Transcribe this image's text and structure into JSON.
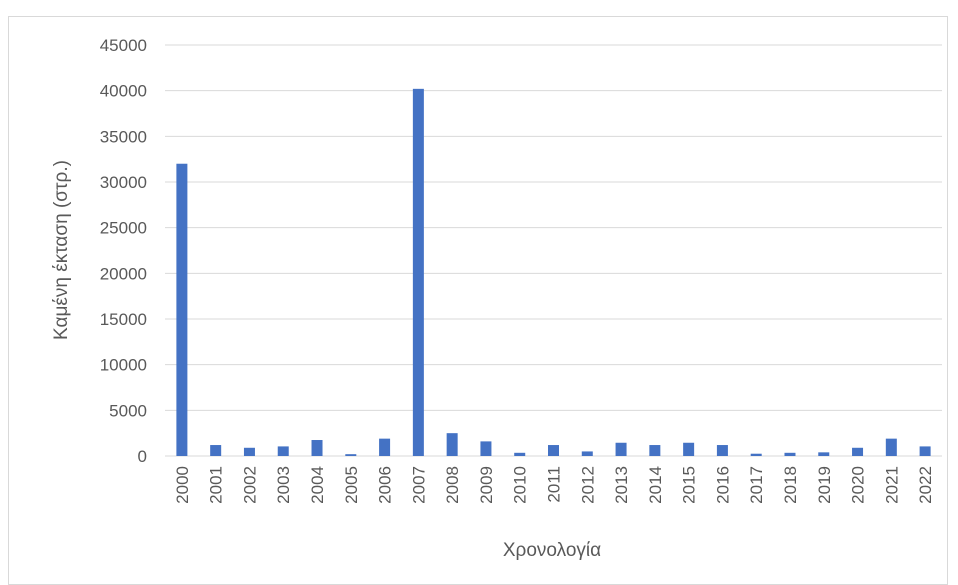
{
  "chart_data": {
    "type": "bar",
    "title": "",
    "xlabel": "Χρονολογία",
    "ylabel": "Καμένη έκταση (στρ.)",
    "ylim": [
      0,
      45000
    ],
    "yticks": [
      "0",
      "5000",
      "10000",
      "15000",
      "20000",
      "25000",
      "30000",
      "35000",
      "40000",
      "45000"
    ],
    "grid": true,
    "legend": "none",
    "bar_color": "#4472c4",
    "categories": [
      "2000",
      "2001",
      "2002",
      "2003",
      "2004",
      "2005",
      "2006",
      "2007",
      "2008",
      "2009",
      "2010",
      "2011",
      "2012",
      "2013",
      "2014",
      "2015",
      "2016",
      "2017",
      "2018",
      "2019",
      "2020",
      "2021",
      "2022"
    ],
    "values": [
      32000,
      1200,
      900,
      1050,
      1750,
      200,
      1900,
      40200,
      2500,
      1600,
      350,
      1200,
      500,
      1450,
      1200,
      1450,
      1200,
      250,
      350,
      400,
      900,
      1900,
      1050
    ]
  }
}
